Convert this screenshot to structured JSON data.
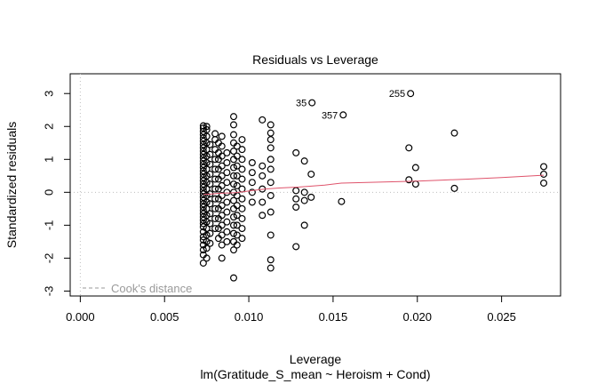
{
  "chart_data": {
    "type": "scatter",
    "title": "Residuals vs Leverage",
    "xlabel": "Leverage",
    "ylabel": "Standardized residuals",
    "subtitle": "lm(Gratitude_S_mean ~ Heroism + Cond)",
    "xlim": [
      -0.0006,
      0.0285
    ],
    "ylim": [
      -3.15,
      3.6
    ],
    "x_ticks": [
      0.0,
      0.005,
      0.01,
      0.015,
      0.02,
      0.025
    ],
    "x_tick_labels": [
      "0.000",
      "0.005",
      "0.010",
      "0.015",
      "0.020",
      "0.025"
    ],
    "y_ticks": [
      -3,
      -2,
      -1,
      0,
      1,
      2,
      3
    ],
    "y_tick_labels": [
      "-3",
      "-2",
      "-1",
      "0",
      "1",
      "2",
      "3"
    ],
    "legend": {
      "label": "Cook's distance",
      "placement": "bottom-left",
      "line_style": "dashed"
    },
    "reference_lines": {
      "zero_y": 0,
      "zero_x": 0,
      "style": "dotted"
    },
    "colors": {
      "points": "#000000",
      "smoother": "#DF536B",
      "reference": "#bfbfbf",
      "legend": "#9a9a9a"
    },
    "labeled_points": [
      {
        "label": "35",
        "x": 0.01375,
        "y": 2.72
      },
      {
        "label": "255",
        "x": 0.0196,
        "y": 3.0
      },
      {
        "label": "357",
        "x": 0.0156,
        "y": 2.35
      }
    ],
    "smoother": {
      "x": [
        0.0073,
        0.0078,
        0.0083,
        0.0088,
        0.0092,
        0.0097,
        0.0103,
        0.011,
        0.0118,
        0.013,
        0.0145,
        0.0155,
        0.017,
        0.0185,
        0.02,
        0.0215,
        0.023,
        0.025,
        0.0275
      ],
      "y": [
        -0.07,
        -0.05,
        -0.03,
        -0.02,
        -0.01,
        0.02,
        0.06,
        0.1,
        0.13,
        0.16,
        0.22,
        0.28,
        0.3,
        0.32,
        0.34,
        0.37,
        0.4,
        0.45,
        0.52
      ]
    },
    "columns": [
      {
        "x": 0.0073,
        "y": [
          -2.15,
          -1.9,
          -1.75,
          -1.6,
          -1.45,
          -1.35,
          -1.2,
          -1.05,
          -0.95,
          -0.85,
          -0.75,
          -0.65,
          -0.55,
          -0.45,
          -0.35,
          -0.25,
          -0.15,
          -0.05,
          0.05,
          0.15,
          0.25,
          0.35,
          0.45,
          0.55,
          0.65,
          0.75,
          0.85,
          0.95,
          1.05,
          1.15,
          1.25,
          1.35,
          1.45,
          1.55,
          1.65,
          1.75,
          1.85,
          1.95,
          2.02
        ]
      },
      {
        "x": 0.0075,
        "y": [
          -2.0,
          -1.7,
          -1.5,
          -1.3,
          -1.1,
          -0.9,
          -0.7,
          -0.5,
          -0.3,
          -0.1,
          0.1,
          0.3,
          0.5,
          0.7,
          0.9,
          1.1,
          1.3,
          1.5,
          1.7,
          1.9,
          2.0
        ]
      },
      {
        "x": 0.0077,
        "y": [
          -1.55,
          -1.25,
          -0.95,
          -0.65,
          -0.35,
          -0.05,
          0.25,
          0.55,
          0.85,
          1.15,
          1.45
        ]
      },
      {
        "x": 0.008,
        "y": [
          -1.1,
          -0.8,
          -0.5,
          -0.2,
          0.1,
          0.4,
          0.7,
          1.0,
          1.3,
          1.6,
          1.78
        ]
      },
      {
        "x": 0.0082,
        "y": [
          -1.4,
          -1.1,
          -0.8,
          -0.5,
          -0.2,
          0.1,
          0.4,
          0.7,
          1.0,
          1.2,
          1.5
        ]
      },
      {
        "x": 0.0084,
        "y": [
          -2.0,
          -1.6,
          -1.3,
          -1.0,
          -0.7,
          -0.4,
          -0.1,
          0.2,
          0.5,
          0.8,
          1.1,
          1.4,
          1.7
        ]
      },
      {
        "x": 0.0087,
        "y": [
          -1.5,
          -1.2,
          -0.9,
          -0.6,
          -0.3,
          0.0,
          0.3,
          0.6,
          0.9,
          1.2
        ]
      },
      {
        "x": 0.0091,
        "y": [
          -2.6,
          -1.75,
          -1.5,
          -1.25,
          -1.0,
          -0.75,
          -0.5,
          -0.25,
          0.0,
          0.25,
          0.5,
          0.75,
          1.0,
          1.25,
          1.5,
          1.75,
          2.05,
          2.3
        ]
      },
      {
        "x": 0.0093,
        "y": [
          -1.6,
          -1.3,
          -1.0,
          -0.7,
          -0.4,
          -0.1,
          0.2,
          0.5,
          0.8,
          1.1,
          1.4
        ]
      },
      {
        "x": 0.0096,
        "y": [
          -1.4,
          -1.1,
          -0.8,
          -0.5,
          -0.2,
          0.1,
          0.4,
          0.7,
          1.0,
          1.3,
          1.6
        ]
      },
      {
        "x": 0.0102,
        "y": [
          -0.3,
          0.0,
          0.3,
          0.6,
          0.9
        ]
      },
      {
        "x": 0.0108,
        "y": [
          -0.7,
          -0.3,
          0.1,
          0.5,
          0.8,
          2.2
        ]
      },
      {
        "x": 0.0113,
        "y": [
          -2.3,
          -2.05,
          -1.3,
          -0.6,
          -0.1,
          0.3,
          0.7,
          1.0,
          1.35,
          1.6,
          1.8,
          2.05
        ]
      },
      {
        "x": 0.0128,
        "y": [
          -1.65,
          -0.45,
          -0.2,
          0.05,
          1.2
        ]
      },
      {
        "x": 0.0133,
        "y": [
          -1.0,
          -0.25,
          0.0,
          0.95
        ]
      },
      {
        "x": 0.0137,
        "y": [
          -0.15,
          0.55
        ]
      },
      {
        "x": 0.0155,
        "y": [
          -0.28
        ]
      },
      {
        "x": 0.0195,
        "y": [
          0.38,
          1.35
        ]
      },
      {
        "x": 0.0199,
        "y": [
          0.25,
          0.75
        ]
      },
      {
        "x": 0.0222,
        "y": [
          0.12,
          1.8
        ]
      },
      {
        "x": 0.0275,
        "y": [
          0.28,
          0.55,
          0.78
        ]
      }
    ]
  }
}
